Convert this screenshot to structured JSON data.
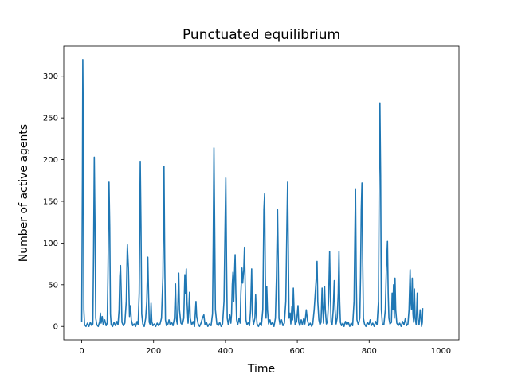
{
  "chart_data": {
    "type": "line",
    "title": "Punctuated equilibrium",
    "xlabel": "Time",
    "ylabel": "Number of active agents",
    "xlim": [
      -50,
      1050
    ],
    "ylim": [
      -16,
      336
    ],
    "xticks": [
      0,
      200,
      400,
      600,
      800,
      1000
    ],
    "yticks": [
      0,
      50,
      100,
      150,
      200,
      250,
      300
    ],
    "grid": false,
    "legend": "none",
    "series": [
      {
        "color": "#1f77b4",
        "points": [
          [
            0,
            5
          ],
          [
            2,
            180
          ],
          [
            3,
            320
          ],
          [
            4,
            260
          ],
          [
            6,
            20
          ],
          [
            8,
            2
          ],
          [
            12,
            0
          ],
          [
            16,
            4
          ],
          [
            20,
            0
          ],
          [
            24,
            5
          ],
          [
            28,
            1
          ],
          [
            31,
            3
          ],
          [
            33,
            90
          ],
          [
            35,
            203
          ],
          [
            37,
            120
          ],
          [
            39,
            10
          ],
          [
            42,
            2
          ],
          [
            46,
            0
          ],
          [
            50,
            6
          ],
          [
            52,
            16
          ],
          [
            54,
            4
          ],
          [
            57,
            12
          ],
          [
            60,
            2
          ],
          [
            64,
            8
          ],
          [
            68,
            1
          ],
          [
            71,
            4
          ],
          [
            73,
            60
          ],
          [
            76,
            173
          ],
          [
            78,
            120
          ],
          [
            80,
            15
          ],
          [
            82,
            2
          ],
          [
            86,
            0
          ],
          [
            90,
            5
          ],
          [
            94,
            1
          ],
          [
            98,
            6
          ],
          [
            101,
            2
          ],
          [
            104,
            20
          ],
          [
            106,
            60
          ],
          [
            108,
            73
          ],
          [
            110,
            40
          ],
          [
            112,
            5
          ],
          [
            116,
            1
          ],
          [
            120,
            4
          ],
          [
            124,
            30
          ],
          [
            127,
            98
          ],
          [
            130,
            70
          ],
          [
            133,
            12
          ],
          [
            136,
            25
          ],
          [
            138,
            8
          ],
          [
            142,
            1
          ],
          [
            146,
            3
          ],
          [
            150,
            0
          ],
          [
            154,
            6
          ],
          [
            157,
            2
          ],
          [
            160,
            40
          ],
          [
            163,
            198
          ],
          [
            165,
            120
          ],
          [
            167,
            15
          ],
          [
            170,
            3
          ],
          [
            174,
            0
          ],
          [
            178,
            10
          ],
          [
            181,
            30
          ],
          [
            184,
            83
          ],
          [
            186,
            40
          ],
          [
            188,
            5
          ],
          [
            191,
            2
          ],
          [
            193,
            28
          ],
          [
            195,
            6
          ],
          [
            198,
            1
          ],
          [
            202,
            3
          ],
          [
            206,
            0
          ],
          [
            210,
            4
          ],
          [
            214,
            1
          ],
          [
            218,
            3
          ],
          [
            222,
            10
          ],
          [
            226,
            60
          ],
          [
            229,
            192
          ],
          [
            231,
            80
          ],
          [
            233,
            8
          ],
          [
            236,
            1
          ],
          [
            240,
            3
          ],
          [
            243,
            8
          ],
          [
            246,
            2
          ],
          [
            250,
            5
          ],
          [
            254,
            1
          ],
          [
            258,
            10
          ],
          [
            261,
            51
          ],
          [
            263,
            10
          ],
          [
            266,
            3
          ],
          [
            268,
            30
          ],
          [
            270,
            64
          ],
          [
            272,
            20
          ],
          [
            276,
            4
          ],
          [
            280,
            2
          ],
          [
            284,
            10
          ],
          [
            287,
            62
          ],
          [
            289,
            40
          ],
          [
            291,
            69
          ],
          [
            293,
            30
          ],
          [
            296,
            4
          ],
          [
            298,
            20
          ],
          [
            300,
            41
          ],
          [
            302,
            10
          ],
          [
            306,
            2
          ],
          [
            310,
            6
          ],
          [
            314,
            0
          ],
          [
            318,
            30
          ],
          [
            320,
            12
          ],
          [
            324,
            3
          ],
          [
            328,
            0
          ],
          [
            332,
            4
          ],
          [
            336,
            10
          ],
          [
            340,
            14
          ],
          [
            343,
            2
          ],
          [
            347,
            5
          ],
          [
            351,
            0
          ],
          [
            355,
            3
          ],
          [
            360,
            1
          ],
          [
            364,
            15
          ],
          [
            366,
            100
          ],
          [
            368,
            214
          ],
          [
            370,
            120
          ],
          [
            372,
            20
          ],
          [
            376,
            3
          ],
          [
            380,
            1
          ],
          [
            384,
            5
          ],
          [
            388,
            0
          ],
          [
            392,
            3
          ],
          [
            396,
            30
          ],
          [
            399,
            120
          ],
          [
            401,
            178
          ],
          [
            403,
            80
          ],
          [
            405,
            10
          ],
          [
            408,
            2
          ],
          [
            412,
            14
          ],
          [
            415,
            4
          ],
          [
            417,
            15
          ],
          [
            419,
            50
          ],
          [
            421,
            65
          ],
          [
            423,
            30
          ],
          [
            425,
            60
          ],
          [
            427,
            86
          ],
          [
            429,
            40
          ],
          [
            431,
            8
          ],
          [
            434,
            2
          ],
          [
            438,
            10
          ],
          [
            441,
            4
          ],
          [
            443,
            40
          ],
          [
            446,
            70
          ],
          [
            448,
            52
          ],
          [
            451,
            68
          ],
          [
            453,
            95
          ],
          [
            455,
            50
          ],
          [
            457,
            8
          ],
          [
            460,
            2
          ],
          [
            464,
            5
          ],
          [
            467,
            1
          ],
          [
            470,
            20
          ],
          [
            473,
            69
          ],
          [
            475,
            15
          ],
          [
            478,
            2
          ],
          [
            482,
            10
          ],
          [
            484,
            38
          ],
          [
            486,
            15
          ],
          [
            488,
            3
          ],
          [
            492,
            0
          ],
          [
            496,
            4
          ],
          [
            500,
            1
          ],
          [
            504,
            20
          ],
          [
            507,
            140
          ],
          [
            509,
            159
          ],
          [
            511,
            60
          ],
          [
            513,
            10
          ],
          [
            515,
            48
          ],
          [
            517,
            20
          ],
          [
            520,
            3
          ],
          [
            524,
            8
          ],
          [
            527,
            2
          ],
          [
            531,
            5
          ],
          [
            535,
            0
          ],
          [
            539,
            10
          ],
          [
            542,
            60
          ],
          [
            545,
            140
          ],
          [
            547,
            80
          ],
          [
            549,
            10
          ],
          [
            552,
            2
          ],
          [
            556,
            8
          ],
          [
            560,
            1
          ],
          [
            564,
            4
          ],
          [
            568,
            30
          ],
          [
            571,
            120
          ],
          [
            573,
            173
          ],
          [
            575,
            90
          ],
          [
            577,
            10
          ],
          [
            580,
            16
          ],
          [
            582,
            3
          ],
          [
            585,
            24
          ],
          [
            587,
            8
          ],
          [
            589,
            46
          ],
          [
            591,
            20
          ],
          [
            594,
            2
          ],
          [
            598,
            6
          ],
          [
            602,
            25
          ],
          [
            604,
            5
          ],
          [
            607,
            1
          ],
          [
            611,
            8
          ],
          [
            614,
            2
          ],
          [
            618,
            10
          ],
          [
            621,
            3
          ],
          [
            625,
            20
          ],
          [
            628,
            8
          ],
          [
            632,
            1
          ],
          [
            636,
            4
          ],
          [
            640,
            0
          ],
          [
            643,
            3
          ],
          [
            647,
            20
          ],
          [
            650,
            40
          ],
          [
            653,
            60
          ],
          [
            655,
            78
          ],
          [
            657,
            30
          ],
          [
            660,
            8
          ],
          [
            663,
            2
          ],
          [
            666,
            5
          ],
          [
            669,
            46
          ],
          [
            671,
            20
          ],
          [
            673,
            4
          ],
          [
            676,
            48
          ],
          [
            678,
            20
          ],
          [
            681,
            3
          ],
          [
            684,
            6
          ],
          [
            687,
            30
          ],
          [
            690,
            90
          ],
          [
            692,
            40
          ],
          [
            694,
            5
          ],
          [
            697,
            2
          ],
          [
            700,
            20
          ],
          [
            703,
            55
          ],
          [
            705,
            20
          ],
          [
            708,
            3
          ],
          [
            711,
            10
          ],
          [
            714,
            40
          ],
          [
            716,
            90
          ],
          [
            718,
            30
          ],
          [
            720,
            5
          ],
          [
            723,
            1
          ],
          [
            727,
            4
          ],
          [
            730,
            0
          ],
          [
            734,
            6
          ],
          [
            738,
            2
          ],
          [
            742,
            5
          ],
          [
            746,
            0
          ],
          [
            750,
            4
          ],
          [
            754,
            1
          ],
          [
            758,
            30
          ],
          [
            760,
            100
          ],
          [
            762,
            165
          ],
          [
            764,
            60
          ],
          [
            766,
            8
          ],
          [
            770,
            2
          ],
          [
            774,
            10
          ],
          [
            776,
            60
          ],
          [
            778,
            140
          ],
          [
            780,
            172
          ],
          [
            782,
            80
          ],
          [
            784,
            10
          ],
          [
            787,
            3
          ],
          [
            791,
            0
          ],
          [
            795,
            5
          ],
          [
            799,
            2
          ],
          [
            803,
            8
          ],
          [
            806,
            1
          ],
          [
            810,
            4
          ],
          [
            814,
            0
          ],
          [
            818,
            6
          ],
          [
            822,
            2
          ],
          [
            826,
            30
          ],
          [
            828,
            180
          ],
          [
            830,
            268
          ],
          [
            832,
            180
          ],
          [
            834,
            20
          ],
          [
            837,
            3
          ],
          [
            841,
            2
          ],
          [
            845,
            20
          ],
          [
            848,
            70
          ],
          [
            851,
            102
          ],
          [
            853,
            40
          ],
          [
            855,
            10
          ],
          [
            858,
            3
          ],
          [
            862,
            5
          ],
          [
            864,
            40
          ],
          [
            866,
            20
          ],
          [
            868,
            50
          ],
          [
            870,
            10
          ],
          [
            872,
            58
          ],
          [
            874,
            20
          ],
          [
            877,
            4
          ],
          [
            881,
            1
          ],
          [
            885,
            4
          ],
          [
            889,
            0
          ],
          [
            893,
            6
          ],
          [
            897,
            2
          ],
          [
            901,
            10
          ],
          [
            904,
            1
          ],
          [
            908,
            3
          ],
          [
            911,
            20
          ],
          [
            914,
            68
          ],
          [
            916,
            30
          ],
          [
            918,
            20
          ],
          [
            920,
            58
          ],
          [
            922,
            15
          ],
          [
            924,
            5
          ],
          [
            926,
            45
          ],
          [
            928,
            10
          ],
          [
            931,
            2
          ],
          [
            934,
            40
          ],
          [
            936,
            8
          ],
          [
            939,
            2
          ],
          [
            942,
            20
          ],
          [
            944,
            10
          ],
          [
            946,
            0
          ],
          [
            948,
            5
          ],
          [
            949,
            22
          ]
        ]
      }
    ]
  }
}
